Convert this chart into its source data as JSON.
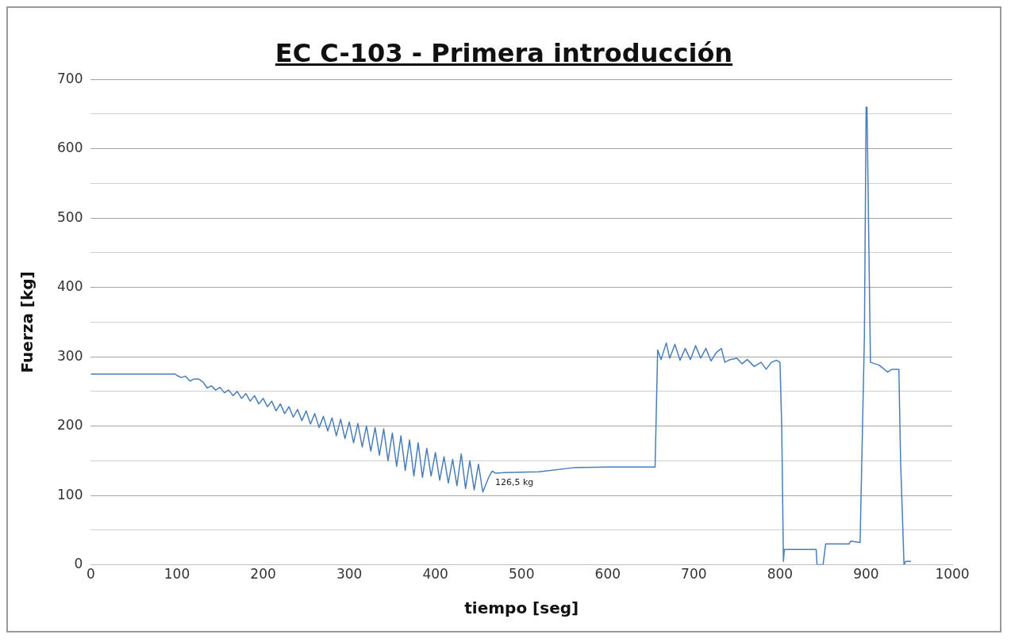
{
  "chart_data": {
    "type": "line",
    "title": "EC C-103 - Primera introducción",
    "xlabel": "tiempo [seg]",
    "ylabel": "Fuerza [kg]",
    "xlim": [
      0,
      1000
    ],
    "xticks": [
      0,
      100,
      200,
      300,
      400,
      500,
      600,
      700,
      800,
      900,
      1000
    ],
    "ylim": [
      0,
      700
    ],
    "yticks": [
      0,
      {
        "value": 50,
        "label": null
      },
      100,
      {
        "value": 150,
        "label": null
      },
      200,
      {
        "value": 250,
        "label": null
      },
      300,
      {
        "value": 350,
        "label": null
      },
      400,
      {
        "value": 450,
        "label": null
      },
      500,
      {
        "value": 550,
        "label": null
      },
      600,
      {
        "value": 650,
        "label": null
      },
      700
    ],
    "grid": "y",
    "legend": false,
    "marker": "none",
    "line_style": "solid",
    "annotations": [
      {
        "text": "126,5 kg",
        "x": 462,
        "y": 126.5
      }
    ],
    "series": [
      {
        "color": "#4a7ebb",
        "x": [
          0,
          98,
          100,
          105,
          110,
          115,
          120,
          125,
          130,
          135,
          140,
          145,
          150,
          155,
          160,
          165,
          170,
          175,
          180,
          185,
          190,
          195,
          200,
          205,
          210,
          215,
          220,
          225,
          230,
          235,
          240,
          245,
          250,
          255,
          260,
          265,
          270,
          275,
          280,
          285,
          290,
          295,
          300,
          305,
          310,
          315,
          320,
          325,
          330,
          335,
          340,
          345,
          350,
          355,
          360,
          365,
          370,
          375,
          380,
          385,
          390,
          395,
          400,
          405,
          410,
          415,
          420,
          425,
          430,
          435,
          440,
          445,
          450,
          455,
          462,
          466,
          470,
          480,
          520,
          560,
          600,
          655,
          658,
          662,
          668,
          672,
          678,
          684,
          690,
          696,
          702,
          708,
          714,
          720,
          726,
          732,
          736,
          742,
          750,
          756,
          762,
          770,
          778,
          784,
          790,
          796,
          800,
          802,
          804,
          805,
          842,
          843,
          850,
          853,
          880,
          882,
          893,
          898,
          900,
          901,
          905,
          915,
          925,
          930,
          938,
          940,
          944,
          946,
          952
        ],
        "values": [
          275,
          275,
          273,
          270,
          272,
          265,
          268,
          268,
          264,
          255,
          258,
          252,
          256,
          248,
          252,
          244,
          250,
          240,
          247,
          236,
          244,
          232,
          240,
          228,
          236,
          222,
          232,
          218,
          228,
          213,
          224,
          208,
          222,
          203,
          218,
          198,
          214,
          193,
          212,
          186,
          210,
          182,
          206,
          176,
          204,
          170,
          200,
          164,
          198,
          158,
          196,
          150,
          190,
          142,
          186,
          136,
          180,
          128,
          176,
          126,
          168,
          128,
          162,
          122,
          156,
          118,
          152,
          114,
          160,
          110,
          150,
          108,
          145,
          105,
          126.5,
          135,
          132,
          133,
          134,
          140,
          141,
          141,
          310,
          296,
          320,
          298,
          318,
          295,
          312,
          296,
          316,
          298,
          312,
          294,
          306,
          312,
          292,
          296,
          298,
          290,
          296,
          286,
          292,
          282,
          292,
          295,
          292,
          200,
          5,
          22,
          22,
          0,
          0,
          30,
          30,
          34,
          32,
          330,
          660,
          660,
          292,
          288,
          278,
          282,
          282,
          150,
          0,
          5,
          5
        ]
      }
    ]
  }
}
